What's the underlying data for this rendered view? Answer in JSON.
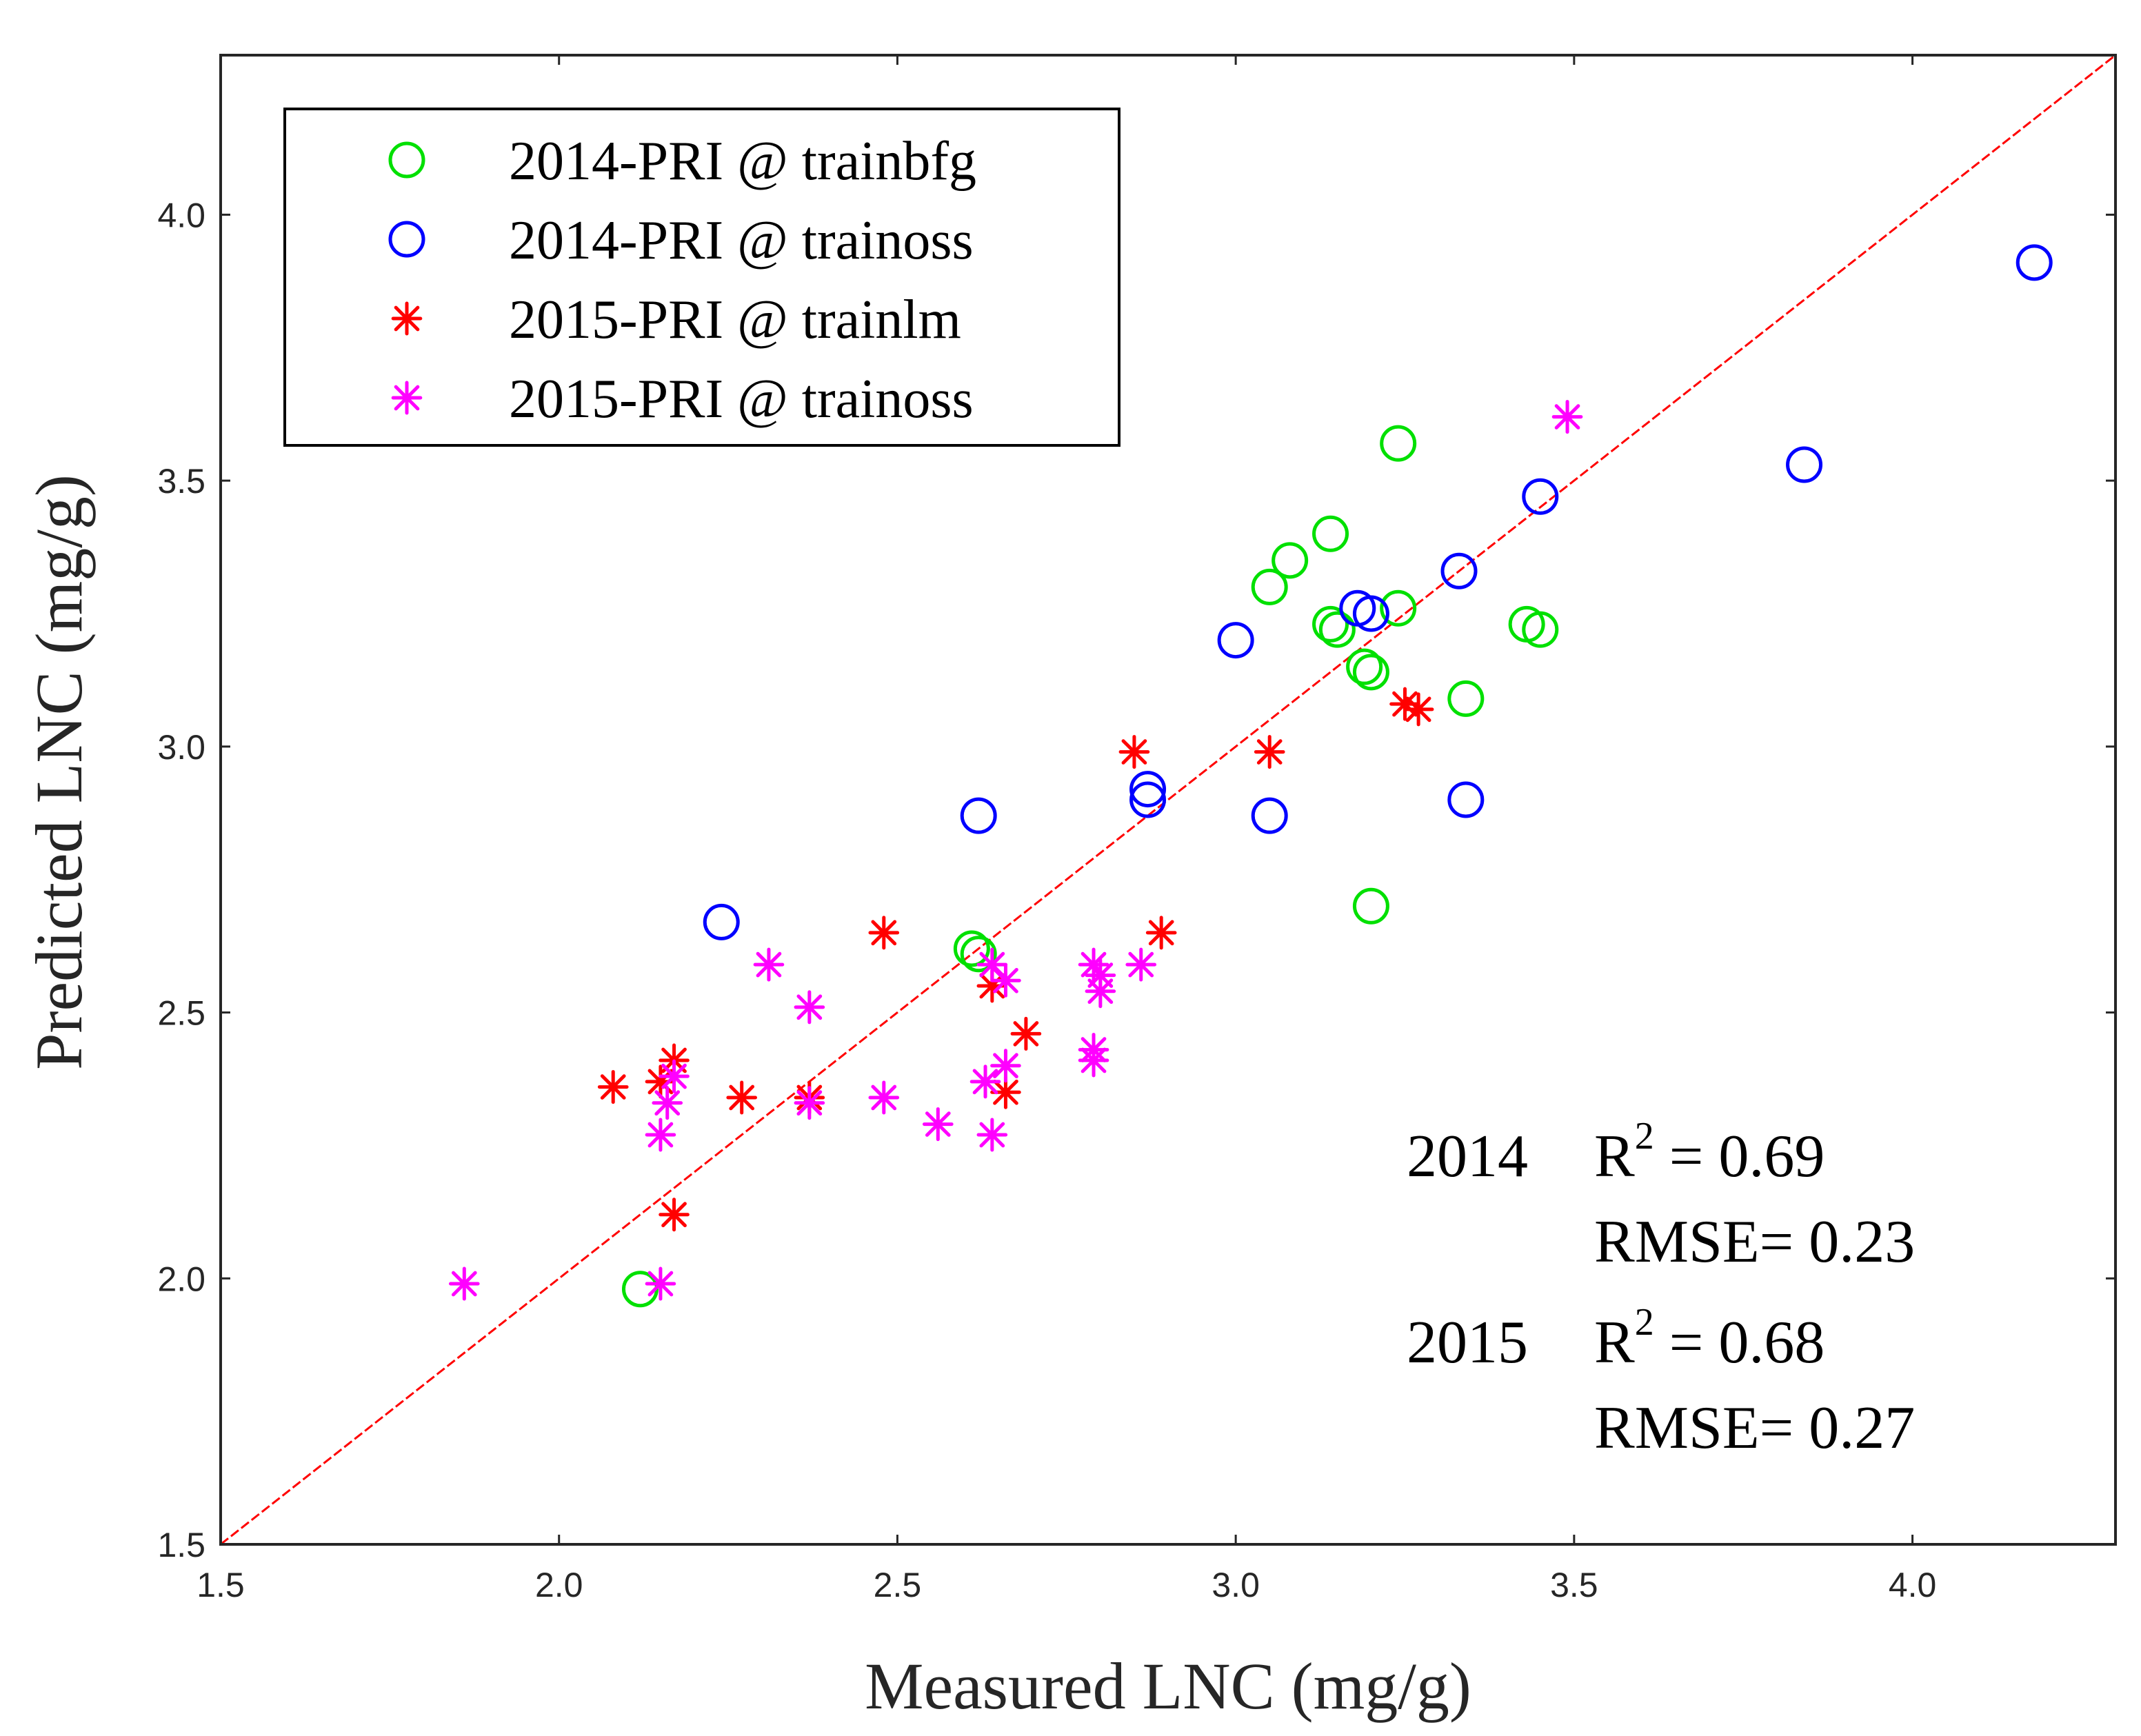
{
  "chart_data": {
    "type": "scatter",
    "xlabel": "Measured LNC (mg/g)",
    "ylabel": "Predicted LNC (mg/g)",
    "xlim": [
      1.5,
      4.3
    ],
    "ylim": [
      1.5,
      4.3
    ],
    "x_ticks": [
      1.5,
      2.0,
      2.5,
      3.0,
      3.5,
      4.0
    ],
    "x_tick_labels": [
      "1.5",
      "2.0",
      "2.5",
      "3.0",
      "3.5",
      "4.0"
    ],
    "y_ticks": [
      1.5,
      2.0,
      2.5,
      3.0,
      3.5,
      4.0
    ],
    "y_tick_labels": [
      "1.5",
      "2.0",
      "2.5",
      "3.0",
      "3.5",
      "4.0"
    ],
    "legend_position": "top-left",
    "reference_line": {
      "from": [
        1.5,
        1.5
      ],
      "to": [
        4.3,
        4.3
      ],
      "color": "#ff0000",
      "style": "dashed"
    },
    "series": [
      {
        "name": "2014-PRI @ trainbfg",
        "marker": "circle",
        "color": "#00e000",
        "points": [
          [
            2.12,
            1.98
          ],
          [
            2.61,
            2.62
          ],
          [
            2.62,
            2.61
          ],
          [
            3.05,
            3.3
          ],
          [
            3.08,
            3.35
          ],
          [
            3.14,
            3.4
          ],
          [
            3.14,
            3.23
          ],
          [
            3.15,
            3.22
          ],
          [
            3.19,
            3.15
          ],
          [
            3.2,
            3.14
          ],
          [
            3.24,
            3.57
          ],
          [
            3.24,
            3.26
          ],
          [
            3.2,
            2.7
          ],
          [
            3.34,
            3.09
          ],
          [
            3.43,
            3.23
          ],
          [
            3.45,
            3.22
          ]
        ]
      },
      {
        "name": "2014-PRI @ trainoss",
        "marker": "circle",
        "color": "#0000ff",
        "points": [
          [
            2.24,
            2.67
          ],
          [
            2.62,
            2.87
          ],
          [
            2.87,
            2.92
          ],
          [
            2.87,
            2.9
          ],
          [
            3.0,
            3.2
          ],
          [
            3.05,
            2.87
          ],
          [
            3.18,
            3.26
          ],
          [
            3.2,
            3.25
          ],
          [
            3.33,
            3.33
          ],
          [
            3.34,
            2.9
          ],
          [
            3.45,
            3.47
          ],
          [
            3.84,
            3.53
          ],
          [
            4.18,
            3.91
          ]
        ]
      },
      {
        "name": "2015-PRI @ trainlm",
        "marker": "asterisk",
        "color": "#ff0000",
        "points": [
          [
            2.08,
            2.36
          ],
          [
            2.15,
            2.37
          ],
          [
            2.17,
            2.41
          ],
          [
            2.17,
            2.12
          ],
          [
            2.27,
            2.34
          ],
          [
            2.37,
            2.34
          ],
          [
            2.48,
            2.65
          ],
          [
            2.64,
            2.55
          ],
          [
            2.66,
            2.35
          ],
          [
            2.69,
            2.46
          ],
          [
            2.85,
            2.99
          ],
          [
            2.89,
            2.65
          ],
          [
            3.05,
            2.99
          ],
          [
            3.25,
            3.08
          ],
          [
            3.27,
            3.07
          ]
        ]
      },
      {
        "name": "2015-PRI @ trainoss",
        "marker": "asterisk",
        "color": "#ff00ff",
        "points": [
          [
            1.86,
            1.99
          ],
          [
            2.15,
            1.99
          ],
          [
            2.15,
            2.27
          ],
          [
            2.16,
            2.33
          ],
          [
            2.17,
            2.38
          ],
          [
            2.31,
            2.59
          ],
          [
            2.37,
            2.51
          ],
          [
            2.37,
            2.33
          ],
          [
            2.48,
            2.34
          ],
          [
            2.56,
            2.29
          ],
          [
            2.63,
            2.37
          ],
          [
            2.64,
            2.27
          ],
          [
            2.64,
            2.59
          ],
          [
            2.66,
            2.56
          ],
          [
            2.66,
            2.4
          ],
          [
            2.79,
            2.59
          ],
          [
            2.79,
            2.41
          ],
          [
            2.8,
            2.57
          ],
          [
            2.8,
            2.54
          ],
          [
            2.79,
            2.43
          ],
          [
            2.86,
            2.59
          ],
          [
            3.49,
            3.62
          ]
        ]
      }
    ],
    "annotations": [
      {
        "year": "2014",
        "r2_label": "R",
        "r2_sup": "2",
        "r2_value": " = 0.69",
        "rmse": "RMSE= 0.23"
      },
      {
        "year": "2015",
        "r2_label": "R",
        "r2_sup": "2",
        "r2_value": " = 0.68",
        "rmse": "RMSE= 0.27"
      }
    ]
  }
}
